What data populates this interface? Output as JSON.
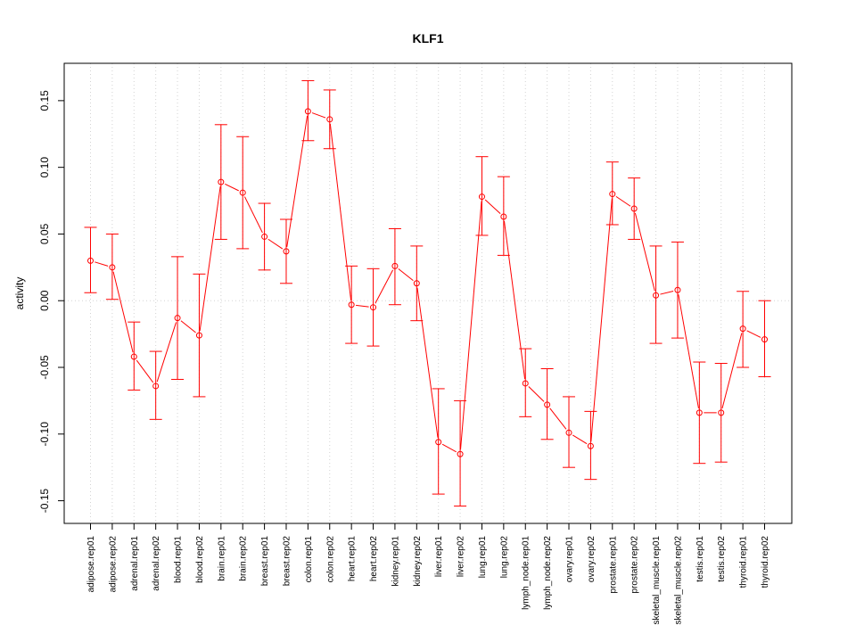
{
  "chart_data": {
    "type": "line",
    "title": "KLF1",
    "xlabel": "",
    "ylabel": "activity",
    "ylim": [
      -0.167,
      0.178
    ],
    "yticks": [
      -0.15,
      -0.1,
      -0.05,
      0.0,
      0.05,
      0.1,
      0.15
    ],
    "ytick_labels": [
      "-0.15",
      "-0.10",
      "-0.05",
      "0.00",
      "0.05",
      "0.10",
      "0.15"
    ],
    "grid": true,
    "color": "#ff0000",
    "categories": [
      "adipose.rep01",
      "adipose.rep02",
      "adrenal.rep01",
      "adrenal.rep02",
      "blood.rep01",
      "blood.rep02",
      "brain.rep01",
      "brain.rep02",
      "breast.rep01",
      "breast.rep02",
      "colon.rep01",
      "colon.rep02",
      "heart.rep01",
      "heart.rep02",
      "kidney.rep01",
      "kidney.rep02",
      "liver.rep01",
      "liver.rep02",
      "lung.rep01",
      "lung.rep02",
      "lymph_node.rep01",
      "lymph_node.rep02",
      "ovary.rep01",
      "ovary.rep02",
      "prostate.rep01",
      "prostate.rep02",
      "skeletal_muscle.rep01",
      "skeletal_muscle.rep02",
      "testis.rep01",
      "testis.rep02",
      "thyroid.rep01",
      "thyroid.rep02"
    ],
    "values": [
      0.03,
      0.025,
      -0.042,
      -0.064,
      -0.013,
      -0.026,
      0.089,
      0.081,
      0.048,
      0.037,
      0.142,
      0.136,
      -0.003,
      -0.005,
      0.026,
      0.013,
      -0.106,
      -0.115,
      0.078,
      0.063,
      -0.062,
      -0.078,
      -0.099,
      -0.109,
      0.08,
      0.069,
      0.004,
      0.008,
      -0.084,
      -0.084,
      -0.021,
      -0.029
    ],
    "err_low": [
      0.006,
      0.001,
      -0.067,
      -0.089,
      -0.059,
      -0.072,
      0.046,
      0.039,
      0.023,
      0.013,
      0.12,
      0.114,
      -0.032,
      -0.034,
      -0.003,
      -0.015,
      -0.145,
      -0.154,
      0.049,
      0.034,
      -0.087,
      -0.104,
      -0.125,
      -0.134,
      0.057,
      0.046,
      -0.032,
      -0.028,
      -0.122,
      -0.121,
      -0.05,
      -0.057
    ],
    "err_high": [
      0.055,
      0.05,
      -0.016,
      -0.038,
      0.033,
      0.02,
      0.132,
      0.123,
      0.073,
      0.061,
      0.165,
      0.158,
      0.026,
      0.024,
      0.054,
      0.041,
      -0.066,
      -0.075,
      0.108,
      0.093,
      -0.036,
      -0.051,
      -0.072,
      -0.083,
      0.104,
      0.092,
      0.041,
      0.044,
      -0.046,
      -0.047,
      0.007,
      0.0
    ]
  }
}
